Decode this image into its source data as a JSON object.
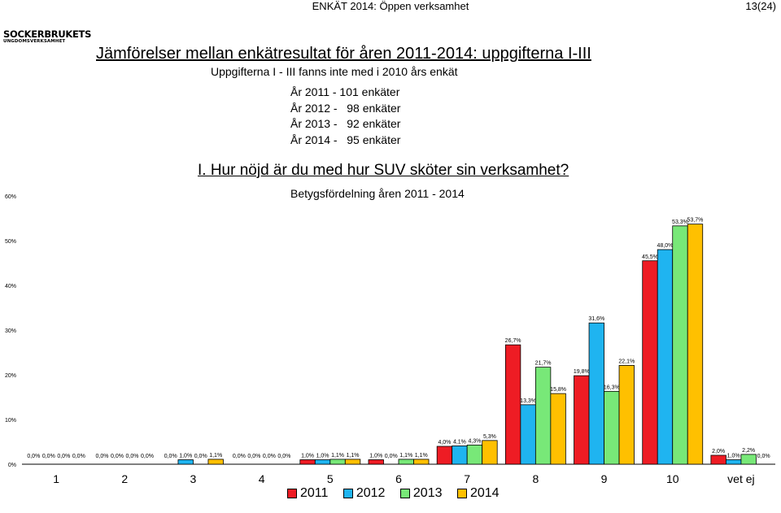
{
  "header": {
    "center": "ENKÄT 2014: Öppen verksamhet",
    "page": "13(24)"
  },
  "logo": {
    "line1": "SOCKERBRUKETS",
    "line2": "UNGDOMSVERKSAMHET"
  },
  "title": "Jämförelser mellan enkätresultat för åren 2011-2014: uppgifterna I-III",
  "subtitle": "Uppgifterna I - III fanns inte med i 2010 års enkät",
  "survey_counts": [
    "År 2011 - 101 enkäter",
    "År 2012 -   98 enkäter",
    "År 2013 -   92 enkäter",
    "År 2014 -   95 enkäter"
  ],
  "question_title": "I. Hur nöjd är du med hur SUV sköter sin verksamhet?",
  "chart_subtitle": "Betygsfördelning åren 2011 - 2014",
  "colors": {
    "s2011": "#ee1c24",
    "s2012": "#1fb4f0",
    "s2013": "#78e878",
    "s2014": "#ffc000"
  },
  "chart_data": {
    "type": "bar",
    "title": "Betygsfördelning åren 2011 - 2014",
    "categories": [
      "1",
      "2",
      "3",
      "4",
      "5",
      "6",
      "7",
      "8",
      "9",
      "10",
      "vet ej"
    ],
    "ylim": [
      0,
      60
    ],
    "yticks": [
      "0%",
      "10%",
      "20%",
      "30%",
      "40%",
      "50%",
      "60%"
    ],
    "grid": false,
    "legend_position": "bottom",
    "series": [
      {
        "name": "2011",
        "values": [
          0.0,
          0.0,
          0.0,
          0.0,
          1.0,
          1.0,
          4.0,
          26.7,
          19.8,
          45.5,
          2.0
        ],
        "labels": [
          "0,0%",
          "0,0%",
          "0,0%",
          "0,0%",
          "1,0%",
          "1,0%",
          "4,0%",
          "26,7%",
          "19,8%",
          "45,5%",
          "2,0%"
        ]
      },
      {
        "name": "2012",
        "values": [
          0.0,
          0.0,
          1.0,
          0.0,
          1.0,
          0.0,
          4.1,
          13.3,
          31.6,
          48.0,
          1.0
        ],
        "labels": [
          "0,0%",
          "0,0%",
          "1,0%",
          "0,0%",
          "1,0%",
          "0,0%",
          "4,1%",
          "13,3%",
          "31,6%",
          "48,0%",
          "1,0%"
        ]
      },
      {
        "name": "2013",
        "values": [
          0.0,
          0.0,
          0.0,
          0.0,
          1.1,
          1.1,
          4.3,
          21.7,
          16.3,
          53.3,
          2.2
        ],
        "labels": [
          "0,0%",
          "0,0%",
          "0,0%",
          "0,0%",
          "1,1%",
          "1,1%",
          "4,3%",
          "21,7%",
          "16,3%",
          "53,3%",
          "2,2%"
        ]
      },
      {
        "name": "2014",
        "values": [
          0.0,
          0.0,
          1.1,
          0.0,
          1.1,
          1.1,
          5.3,
          15.8,
          22.1,
          53.7,
          0.0
        ],
        "labels": [
          "0,0%",
          "0,0%",
          "1,1%",
          "0,0%",
          "1,1%",
          "1,1%",
          "5,3%",
          "15,8%",
          "22,1%",
          "53,7%",
          "0,0%"
        ]
      }
    ]
  }
}
